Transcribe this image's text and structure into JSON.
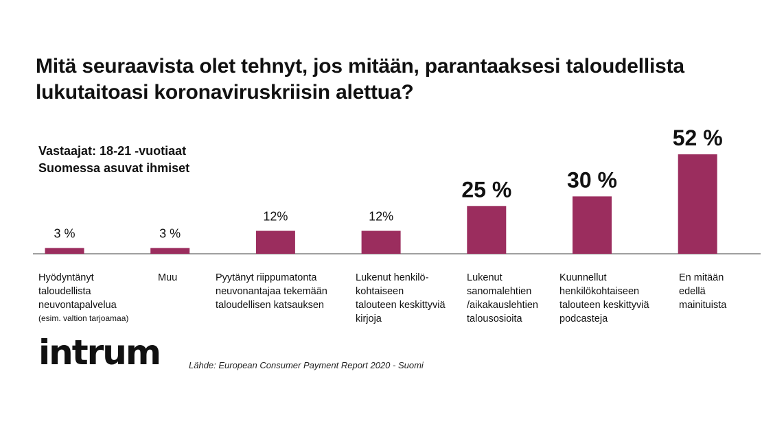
{
  "title": "Mitä seuraavista olet tehnyt, jos mitään, parantaaksesi taloudellista lukutaitoasi koronaviruskriisin alettua?",
  "subtitle_lines": [
    "Vastaajat: 18-21 -vuotiaat",
    "Suomessa asuvat ihmiset"
  ],
  "logo_text": "intrum",
  "source": "Lähde: European Consumer Payment Report 2020 - Suomi",
  "colors": {
    "bar": "#9b2d5e",
    "axis": "#666666",
    "text": "#111111"
  },
  "chart_data": {
    "type": "bar",
    "categories": [
      "Hyödyntänyt taloudellista neuvontapalvelua (esim. valtion tarjoamaa)",
      "Muu",
      "Pyytänyt riippumatonta neuvonantajaa tekemään taloudellisen katsauksen",
      "Lukenut henkilö-kohtaiseen talouteen keskittyviä kirjoja",
      "Lukenut sanomalehtien /aikakauslehtien talousosioita",
      "Kuunnellut henkilökohtaiseen talouteen keskittyviä podcasteja",
      "En mitään edellä mainituista"
    ],
    "category_labels": [
      {
        "text": "Hyödyntänyt\ntaloudellista\nneuvontapalvelua",
        "note": "(esim. valtion tarjoamaa)"
      },
      {
        "text": "Muu",
        "note": ""
      },
      {
        "text": "Pyytänyt riippumatonta\nneuvonantajaa tekemään\ntaloudellisen katsauksen",
        "note": ""
      },
      {
        "text": "Lukenut henkilö-\nkohtaiseen\ntalouteen keskittyviä\nkirjoja",
        "note": ""
      },
      {
        "text": "Lukenut\nsanomalehtien\n/aikakauslehtien\ntalousosioita",
        "note": ""
      },
      {
        "text": "Kuunnellut\nhenkilökohtaiseen\ntalouteen keskittyviä\npodcasteja",
        "note": ""
      },
      {
        "text": "En mitään\nedellä\nmainituista",
        "note": ""
      }
    ],
    "values": [
      3,
      3,
      12,
      12,
      25,
      30,
      52
    ],
    "value_labels": [
      "3 %",
      "3 %",
      "12%",
      "12%",
      "25 %",
      "30 %",
      "52 %"
    ],
    "value_label_emphasis": [
      false,
      false,
      false,
      false,
      true,
      true,
      true
    ],
    "ylim": [
      0,
      52
    ],
    "grid": false,
    "legend": "none"
  }
}
